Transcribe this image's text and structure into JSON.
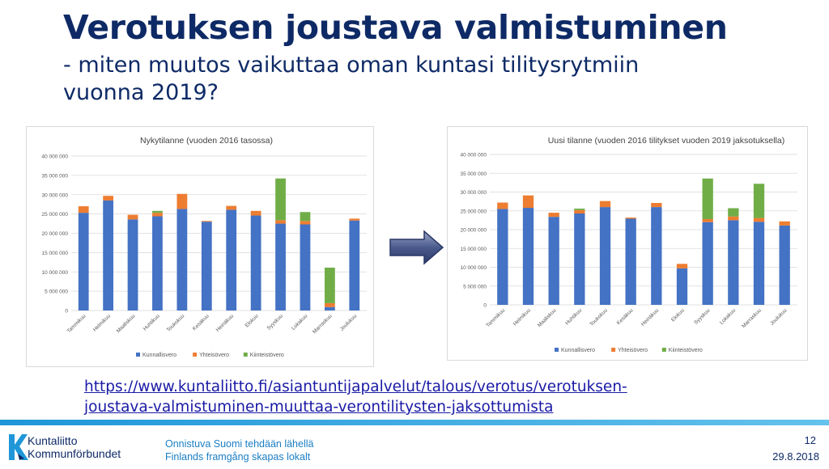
{
  "slide": {
    "title": "Verotuksen joustava valmistuminen",
    "subtitle_line1": "- miten muutos vaikuttaa oman kuntasi tilitysrytmiin",
    "subtitle_line2": "vuonna 2019?",
    "link_line1": "https://www.kuntaliitto.fi/asiantuntijapalvelut/talous/verotus/verotuksen-",
    "link_line2": "joustava-valmistuminen-muuttaa-verontilitysten-jaksottumista",
    "logo_line1": "Kuntaliitto",
    "logo_line2": "Kommunförbundet",
    "slogan_line1": "Onnistuva Suomi tehdään lähellä",
    "slogan_line2": "Finlands framgång skapas lokalt",
    "page_number": "12",
    "date": "29.8.2018",
    "arrow_icon": "right-arrow-icon",
    "colors": {
      "title": "#0e2a66",
      "link": "#1a1aa6",
      "footer_line": "#1e96d8"
    }
  },
  "chart_data": [
    {
      "type": "bar",
      "stacked": true,
      "title": "Nykytilanne (vuoden 2016 tasossa)",
      "categories": [
        "Tammikuu",
        "Helmikuu",
        "Maaliskuu",
        "Huhtikuu",
        "Toukokuu",
        "Kesäkuu",
        "Heinäkuu",
        "Elokuu",
        "Syyskuu",
        "Lokakuu",
        "Marraskuu",
        "Joulukuu"
      ],
      "series": [
        {
          "name": "Kunnallisvero",
          "color": "#4472c4",
          "values": [
            25300000,
            28500000,
            23600000,
            24400000,
            26300000,
            23000000,
            26100000,
            24600000,
            22500000,
            22300000,
            900000,
            23300000
          ]
        },
        {
          "name": "Yhteisövero",
          "color": "#ed7d31",
          "values": [
            1700000,
            1200000,
            1200000,
            900000,
            3900000,
            200000,
            1000000,
            1200000,
            900000,
            900000,
            1000000,
            500000
          ]
        },
        {
          "name": "Kiinteistövero",
          "color": "#70ad47",
          "values": [
            0,
            0,
            0,
            500000,
            0,
            0,
            0,
            0,
            10800000,
            2300000,
            9200000,
            0
          ]
        }
      ],
      "ylim": [
        0,
        40000000
      ],
      "yticks": [
        "0",
        "5 000 000",
        "10 000 000",
        "15 000 000",
        "20 000 000",
        "25 000 000",
        "30 000 000",
        "35 000 000",
        "40 000 000"
      ],
      "grid": true,
      "legend": "bottom"
    },
    {
      "type": "bar",
      "stacked": true,
      "title": "Uusi tilanne (vuoden 2016 tilitykset vuoden 2019 jaksotuksella)",
      "categories": [
        "Tammikuu",
        "Helmikuu",
        "Maaliskuu",
        "Huhtikuu",
        "Toukokuu",
        "Kesäkuu",
        "Heinäkuu",
        "Elokuu",
        "Syyskuu",
        "Lokakuu",
        "Marraskuu",
        "Joulukuu"
      ],
      "series": [
        {
          "name": "Kunnallisvero",
          "color": "#4472c4",
          "values": [
            25500000,
            25800000,
            23400000,
            24300000,
            26000000,
            22900000,
            26000000,
            9700000,
            22000000,
            22500000,
            22100000,
            21100000
          ]
        },
        {
          "name": "Yhteisövero",
          "color": "#ed7d31",
          "values": [
            1700000,
            3300000,
            1100000,
            900000,
            1600000,
            300000,
            1100000,
            1200000,
            800000,
            1000000,
            1000000,
            1100000
          ]
        },
        {
          "name": "Kiinteistövero",
          "color": "#70ad47",
          "values": [
            0,
            0,
            0,
            400000,
            0,
            0,
            0,
            0,
            10800000,
            2200000,
            9100000,
            0
          ]
        }
      ],
      "ylim": [
        0,
        40000000
      ],
      "yticks": [
        "0",
        "5 000 000",
        "10 000 000",
        "15 000 000",
        "20 000 000",
        "25 000 000",
        "30 000 000",
        "35 000 000",
        "40 000 000"
      ],
      "grid": true,
      "legend": "bottom"
    }
  ]
}
